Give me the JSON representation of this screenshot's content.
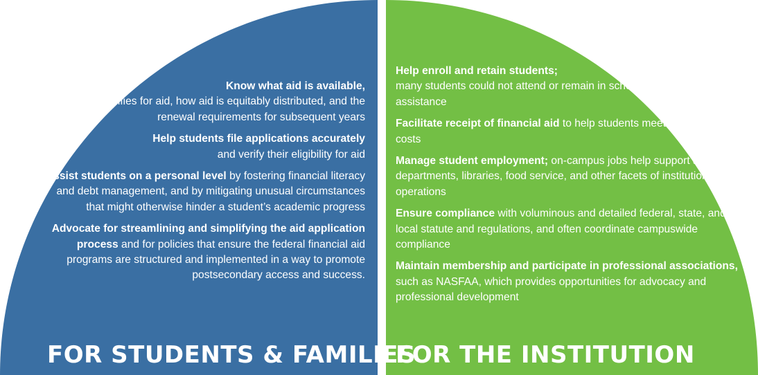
{
  "colors": {
    "left_panel": "#3a6fa3",
    "right_panel": "#73bf45",
    "divider": "#ffffff"
  },
  "left": {
    "heading": "FOR STUDENTS & FAMILIES",
    "items": [
      {
        "bold": "Know what aid is available,",
        "text": "who qualifies for aid, how aid is equitably distributed, and the renewal requirements for subsequent years"
      },
      {
        "bold": "Help students file applications accurately",
        "text": "and verify their eligibility for aid"
      },
      {
        "bold": "Assist students on a personal level",
        "text": " by fostering financial literacy and debt management, and by mitigating unusual circumstances that might otherwise hinder a student’s academic progress"
      },
      {
        "bold": "Advocate for streamlining and simplifying the aid application process",
        "text": " and for policies that ensure the federal financial aid programs are structured and implemented in a way to promote postsecondary access and success."
      }
    ]
  },
  "right": {
    "heading": "FOR THE INSTITUTION",
    "items": [
      {
        "bold": "Help enroll and retain students;",
        "text": "many students could not attend or remain in school without financial assistance"
      },
      {
        "bold": "Facilitate receipt of financial aid",
        "text": " to help students meet institutional costs"
      },
      {
        "bold": "Manage student employment;",
        "text": " on-campus jobs help support academic departments, libraries, food service, and other facets of institutional operations"
      },
      {
        "bold": "Ensure compliance",
        "text": " with voluminous and detailed federal, state, and local statute and regulations, and often coordinate campuswide compliance"
      },
      {
        "bold": "Maintain membership and participate in professional associations,",
        "text": " such as NASFAA, which provides opportunities for advocacy and professional development"
      }
    ]
  }
}
